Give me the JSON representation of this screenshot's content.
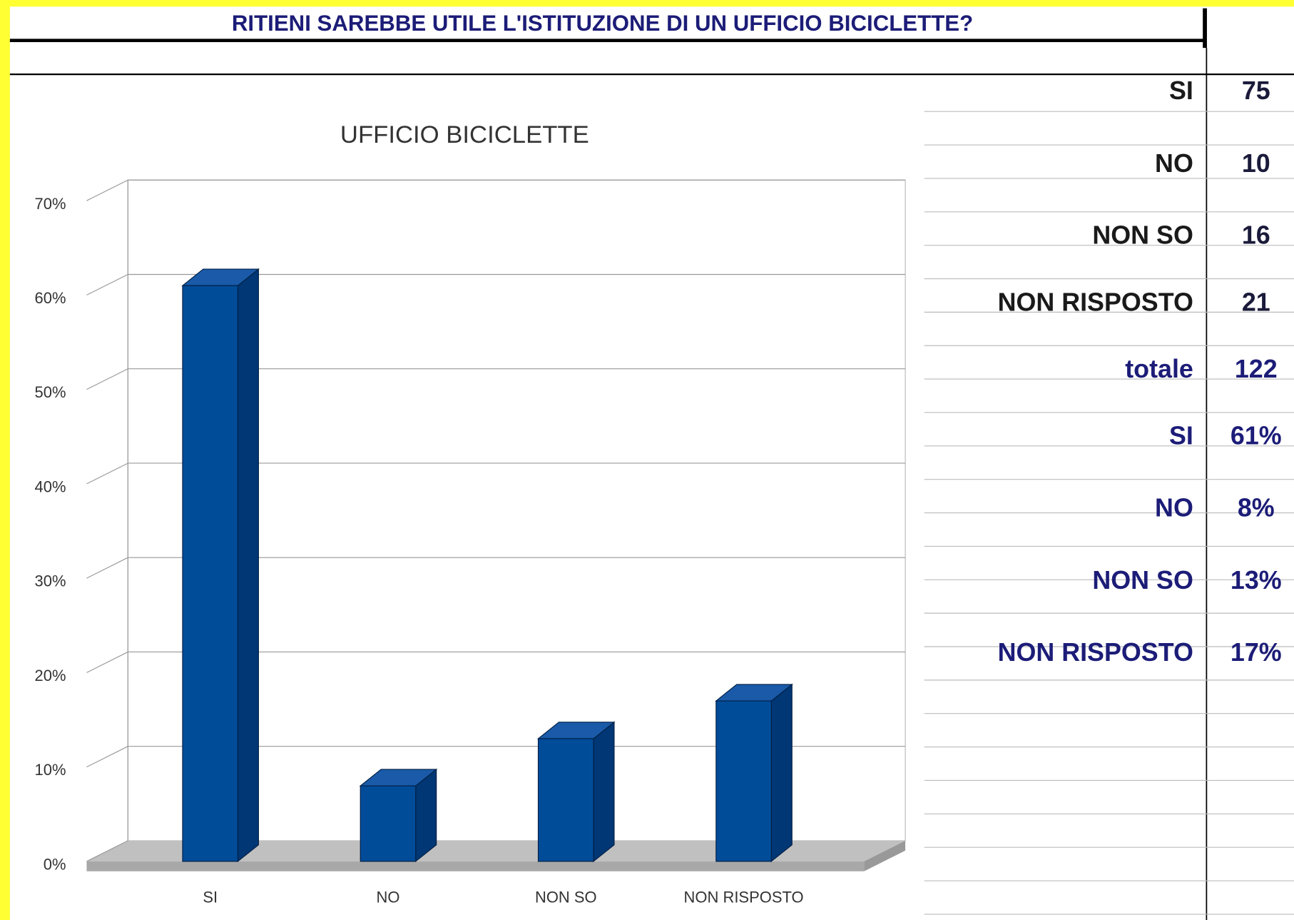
{
  "header": {
    "title": "RITIENI SAREBBE UTILE L'ISTITUZIONE DI UN UFFICIO BICICLETTE?"
  },
  "chart_data": {
    "type": "bar",
    "title": "UFFICIO BICICLETTE",
    "categories": [
      "SI",
      "NO",
      "NON SO",
      "NON RISPOSTO"
    ],
    "values": [
      61,
      8,
      13,
      17
    ],
    "color": "#004c99",
    "ylim": [
      0,
      70
    ],
    "yticks": [
      {
        "value": 0,
        "label": "0%"
      },
      {
        "value": 10,
        "label": "10%"
      },
      {
        "value": 20,
        "label": "20%"
      },
      {
        "value": 30,
        "label": "30%"
      },
      {
        "value": 40,
        "label": "40%"
      },
      {
        "value": 50,
        "label": "50%"
      },
      {
        "value": 60,
        "label": "60%"
      },
      {
        "value": 70,
        "label": "70%"
      }
    ],
    "grid": true
  },
  "table": {
    "rows": [
      [
        "SI",
        "75"
      ],
      [
        "NO",
        "10"
      ],
      [
        "NON SO",
        "16"
      ],
      [
        "NON RISPOSTO",
        "21"
      ],
      [
        "totale",
        "122"
      ],
      [
        "SI",
        "61%"
      ],
      [
        "NO",
        "8%"
      ],
      [
        "NON SO",
        "13%"
      ],
      [
        "NON RISPOSTO",
        "17%"
      ]
    ]
  }
}
